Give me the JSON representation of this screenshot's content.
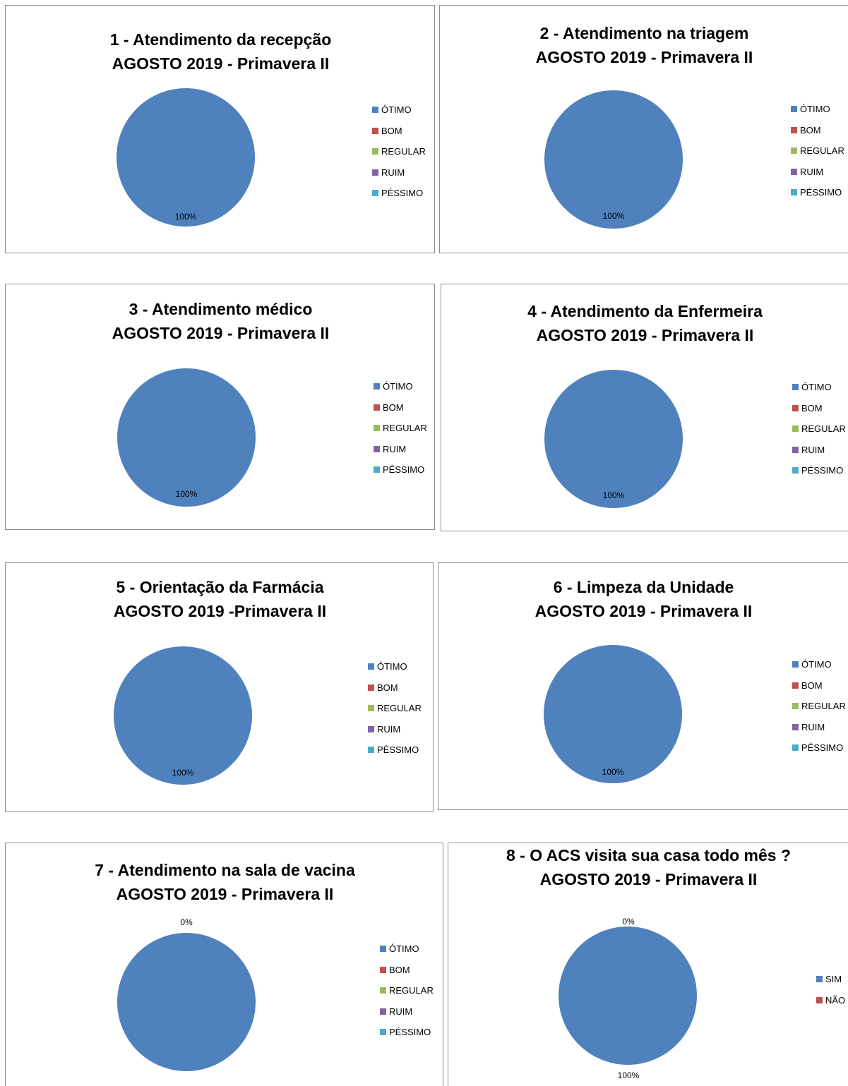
{
  "colors": {
    "otimo": "#4f81bd",
    "bom": "#c0504d",
    "regular": "#9bbb59",
    "ruim": "#8064a2",
    "pessimo": "#4bacc6"
  },
  "chart_data": [
    {
      "type": "pie",
      "title": "1 - Atendimento da recepção",
      "subtitle": "AGOSTO 2019 - Primavera II",
      "categories": [
        "ÓTIMO",
        "BOM",
        "REGULAR",
        "RUIM",
        "PÉSSIMO"
      ],
      "values": [
        100,
        0,
        0,
        0,
        0
      ],
      "data_labels": [
        "100%"
      ],
      "legend": "right"
    },
    {
      "type": "pie",
      "title": "2 - Atendimento na triagem",
      "subtitle": "AGOSTO 2019 - Primavera II",
      "categories": [
        "ÓTIMO",
        "BOM",
        "REGULAR",
        "RUIM",
        "PÉSSIMO"
      ],
      "values": [
        100,
        0,
        0,
        0,
        0
      ],
      "data_labels": [
        "100%"
      ],
      "legend": "right"
    },
    {
      "type": "pie",
      "title": "3 - Atendimento médico",
      "subtitle": "AGOSTO 2019 - Primavera II",
      "categories": [
        "ÓTIMO",
        "BOM",
        "REGULAR",
        "RUIM",
        "PÉSSIMO"
      ],
      "values": [
        100,
        0,
        0,
        0,
        0
      ],
      "data_labels": [
        "100%"
      ],
      "legend": "right"
    },
    {
      "type": "pie",
      "title": "4 - Atendimento da Enfermeira",
      "subtitle": "AGOSTO 2019 - Primavera II",
      "categories": [
        "ÓTIMO",
        "BOM",
        "REGULAR",
        "RUIM",
        "PÉSSIMO"
      ],
      "values": [
        100,
        0,
        0,
        0,
        0
      ],
      "data_labels": [
        "100%"
      ],
      "legend": "right"
    },
    {
      "type": "pie",
      "title": "5 - Orientação da Farmácia",
      "subtitle": "AGOSTO 2019 -Primavera II",
      "categories": [
        "ÓTIMO",
        "BOM",
        "REGULAR",
        "RUIM",
        "PÉSSIMO"
      ],
      "values": [
        100,
        0,
        0,
        0,
        0
      ],
      "data_labels": [
        "100%"
      ],
      "legend": "right"
    },
    {
      "type": "pie",
      "title": "6 - Limpeza da Unidade",
      "subtitle": "AGOSTO 2019 - Primavera II",
      "categories": [
        "ÓTIMO",
        "BOM",
        "REGULAR",
        "RUIM",
        "PÉSSIMO"
      ],
      "values": [
        100,
        0,
        0,
        0,
        0
      ],
      "data_labels": [
        "100%"
      ],
      "legend": "right"
    },
    {
      "type": "pie",
      "title": "7 - Atendimento na sala de vacina",
      "subtitle": "AGOSTO 2019 - Primavera II",
      "categories": [
        "ÓTIMO",
        "BOM",
        "REGULAR",
        "RUIM",
        "PÉSSIMO"
      ],
      "values": [
        100,
        0,
        0,
        0,
        0
      ],
      "data_labels": [
        "0%"
      ],
      "legend": "right"
    },
    {
      "type": "pie",
      "title": "8 - O ACS visita sua casa todo mês ?",
      "subtitle": "AGOSTO 2019 - Primavera II",
      "categories": [
        "SIM",
        "NÃO"
      ],
      "values": [
        100,
        0
      ],
      "data_labels": [
        "0%",
        "100%"
      ],
      "legend": "right"
    }
  ]
}
